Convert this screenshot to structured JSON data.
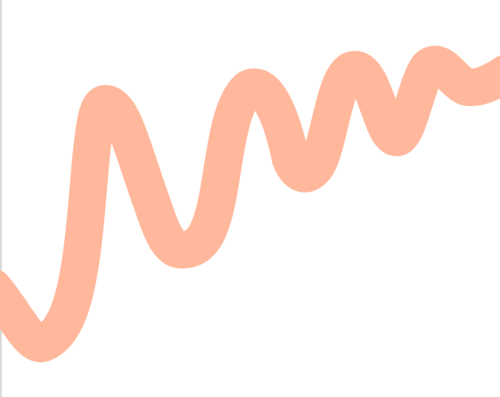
{
  "canvas": {
    "background": "#ffffff",
    "edge_color": "#d9d9d9"
  },
  "stroke": {
    "color": "#ffb89c",
    "shape": "wavy-squiggle-line"
  }
}
